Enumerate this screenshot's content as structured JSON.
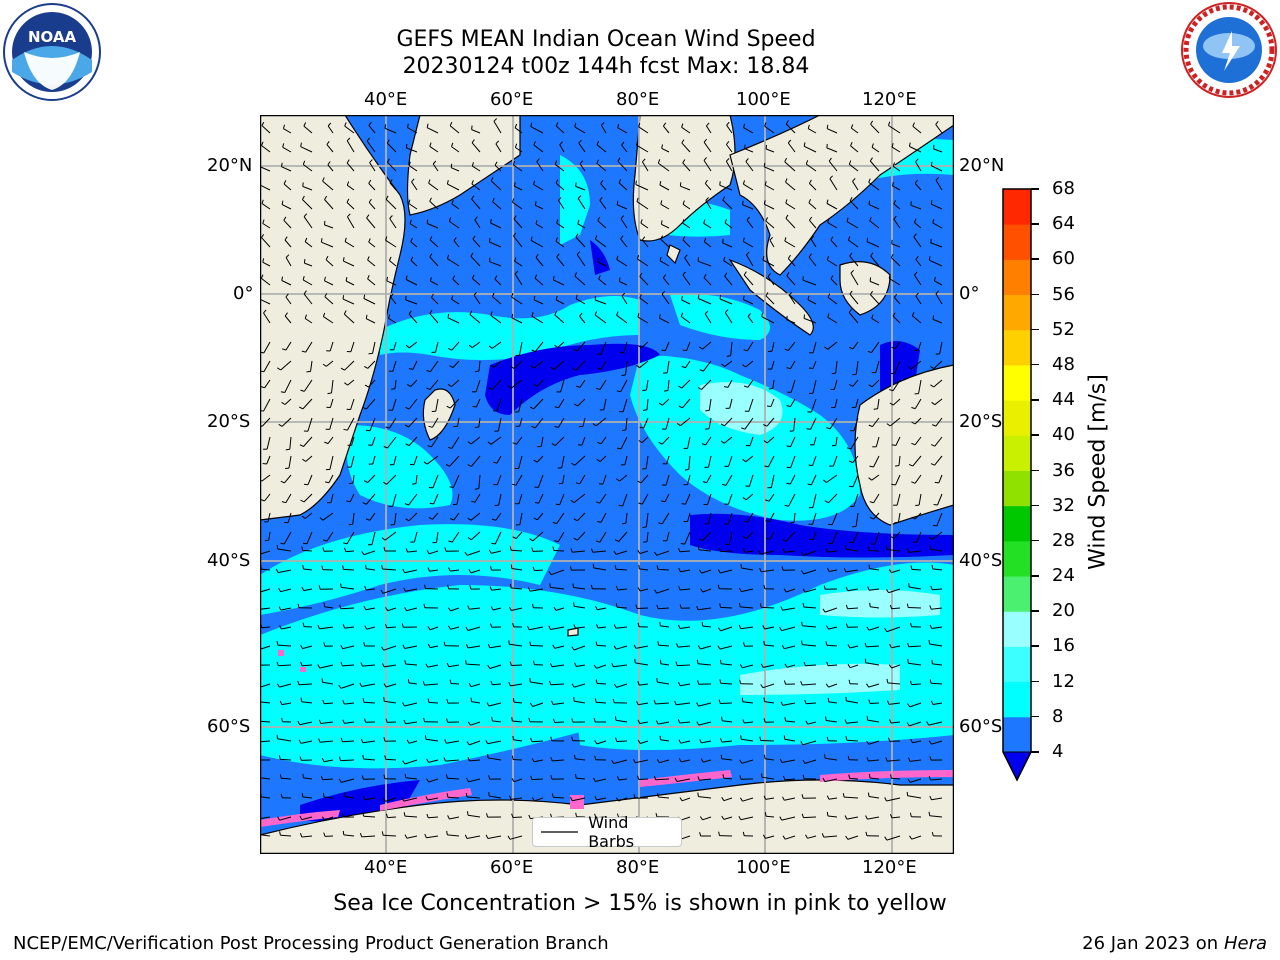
{
  "title": {
    "line1": "GEFS MEAN Indian Ocean Wind Speed",
    "line2": "20230124 t00z 144h fcst   Max: 18.84"
  },
  "logos": {
    "left": "NOAA",
    "right": "NATIONAL WEATHER SERVICE"
  },
  "map": {
    "lon_labels_top": [
      "40°E",
      "60°E",
      "80°E",
      "100°E",
      "120°E"
    ],
    "lon_labels_bottom": [
      "40°E",
      "60°E",
      "80°E",
      "100°E",
      "120°E"
    ],
    "lat_labels_left": [
      "20°N",
      "0°",
      "20°S",
      "40°S",
      "60°S"
    ],
    "lat_labels_right": [
      "20°N",
      "0°",
      "20°S",
      "40°S",
      "60°S"
    ],
    "legend_label": "Wind Barbs",
    "colors": {
      "land": "#eeedde",
      "ocean_weak": "#0000ee",
      "ocean_4_8": "#1e78ff",
      "ocean_8_12": "#00ffff",
      "ocean_12_16": "#3cffff",
      "ocean_16_20": "#99ffff",
      "ice": "#ff66cc"
    }
  },
  "colorbar": {
    "label": "Wind Speed [m/s]",
    "ticks": [
      "68",
      "64",
      "60",
      "56",
      "52",
      "48",
      "44",
      "40",
      "36",
      "32",
      "28",
      "24",
      "20",
      "16",
      "12",
      "8",
      "4"
    ],
    "colors": [
      "#0000ee",
      "#1e78ff",
      "#00ffff",
      "#3cffff",
      "#99ffff",
      "#4cf070",
      "#24e024",
      "#00c800",
      "#90e000",
      "#c8f000",
      "#e8f000",
      "#ffff00",
      "#ffd000",
      "#ffa800",
      "#ff8000",
      "#ff5000",
      "#ff2800",
      "#ff0000"
    ]
  },
  "footer": {
    "left": "NCEP/EMC/Verification Post Processing Product Generation Branch",
    "right_date": "26 Jan 2023 on ",
    "right_host": "Hera",
    "ice_note": "Sea Ice Concentration > 15% is shown in pink to yellow"
  }
}
